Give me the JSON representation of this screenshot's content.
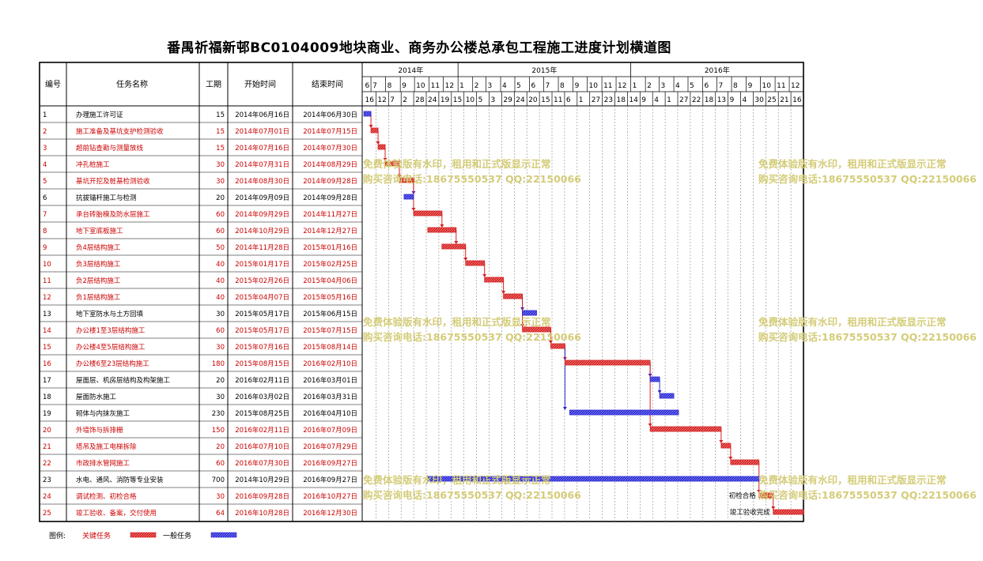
{
  "title": "番禺祈福新邨BC0104009地块商业、商务办公楼总承包工程施工进度计划横道图",
  "header": {
    "id": "编号",
    "name": "任务名称",
    "duration": "工期",
    "start": "开始时间",
    "end": "结束时间"
  },
  "colors": {
    "critical": "#d42020",
    "normal": "#2a2ad4",
    "critical_text": "#cc0000",
    "normal_text": "#000000",
    "border": "#000000",
    "grid": "#8a8a8a",
    "watermark": "#d4cc78"
  },
  "timeline": {
    "years": [
      "2014年",
      "2015年",
      "2016年"
    ],
    "months": [
      "6",
      "7",
      "8",
      "9",
      "10",
      "11",
      "12",
      "1",
      "2",
      "3",
      "4",
      "5",
      "6",
      "7",
      "8",
      "9",
      "10",
      "11",
      "12",
      "1",
      "2",
      "3",
      "4",
      "5",
      "6",
      "7",
      "8",
      "9",
      "10",
      "11",
      "12"
    ],
    "weeks": [
      "16",
      "12",
      "7",
      "2",
      "28",
      "24",
      "19",
      "15",
      "10",
      "5",
      "3",
      "29",
      "24",
      "20",
      "15",
      "11",
      "6",
      "1",
      "27",
      "23",
      "18",
      "14",
      "9",
      "4",
      "1",
      "27",
      "22",
      "18",
      "13",
      "9",
      "4",
      "30",
      "25",
      "21",
      "16"
    ]
  },
  "chart_data": {
    "type": "gantt",
    "title": "番禺祈福新邨BC0104009地块商业、商务办公楼总承包工程施工进度计划横道图",
    "x_range": [
      "2014-06-16",
      "2016-12-30"
    ],
    "tasks": [
      {
        "id": "1",
        "name": "办理施工许可证",
        "duration": "15",
        "start": "2014年06月16日",
        "end": "2014年06月30日",
        "critical": false
      },
      {
        "id": "2",
        "name": "施工准备及基坑支护检测验收",
        "duration": "15",
        "start": "2014年07月01日",
        "end": "2014年07月15日",
        "critical": true
      },
      {
        "id": "3",
        "name": "超前钻查勘与测量放线",
        "duration": "15",
        "start": "2014年07月16日",
        "end": "2014年07月30日",
        "critical": true
      },
      {
        "id": "4",
        "name": "冲孔桩施工",
        "duration": "30",
        "start": "2014年07月31日",
        "end": "2014年08月29日",
        "critical": true
      },
      {
        "id": "5",
        "name": "基坑开挖及桩基检测验收",
        "duration": "30",
        "start": "2014年08月30日",
        "end": "2014年09月28日",
        "critical": true
      },
      {
        "id": "6",
        "name": "抗拔锚杆施工与检测",
        "duration": "20",
        "start": "2014年09月09日",
        "end": "2014年09月28日",
        "critical": false
      },
      {
        "id": "7",
        "name": "承台砖胎模及防水层施工",
        "duration": "60",
        "start": "2014年09月29日",
        "end": "2014年11月27日",
        "critical": true
      },
      {
        "id": "8",
        "name": "地下室底板施工",
        "duration": "60",
        "start": "2014年10月29日",
        "end": "2014年12月27日",
        "critical": true
      },
      {
        "id": "9",
        "name": "负4层结构施工",
        "duration": "50",
        "start": "2014年11月28日",
        "end": "2015年01月16日",
        "critical": true
      },
      {
        "id": "10",
        "name": "负3层结构施工",
        "duration": "40",
        "start": "2015年01月17日",
        "end": "2015年02月25日",
        "critical": true
      },
      {
        "id": "11",
        "name": "负2层结构施工",
        "duration": "40",
        "start": "2015年02月26日",
        "end": "2015年04月06日",
        "critical": true
      },
      {
        "id": "12",
        "name": "负1层结构施工",
        "duration": "40",
        "start": "2015年04月07日",
        "end": "2015年05月16日",
        "critical": true
      },
      {
        "id": "13",
        "name": "地下室防水与土方回填",
        "duration": "30",
        "start": "2015年05月17日",
        "end": "2015年06月15日",
        "critical": false
      },
      {
        "id": "14",
        "name": "办公楼1至3层结构施工",
        "duration": "60",
        "start": "2015年05月17日",
        "end": "2015年07月15日",
        "critical": true
      },
      {
        "id": "15",
        "name": "办公楼4至5层结构施工",
        "duration": "30",
        "start": "2015年07月16日",
        "end": "2015年08月14日",
        "critical": true
      },
      {
        "id": "16",
        "name": "办公楼6至23层结构施工",
        "duration": "180",
        "start": "2015年08月15日",
        "end": "2016年02月10日",
        "critical": true
      },
      {
        "id": "17",
        "name": "屋面层、机房层结构及构架施工",
        "duration": "20",
        "start": "2016年02月11日",
        "end": "2016年03月01日",
        "critical": false
      },
      {
        "id": "18",
        "name": "屋面防水施工",
        "duration": "30",
        "start": "2016年03月02日",
        "end": "2016年03月31日",
        "critical": false
      },
      {
        "id": "19",
        "name": "砌体与内抹灰施工",
        "duration": "230",
        "start": "2015年08月25日",
        "end": "2016年04月10日",
        "critical": false
      },
      {
        "id": "20",
        "name": "外墙饰与拆排栅",
        "duration": "150",
        "start": "2016年02月11日",
        "end": "2016年07月09日",
        "critical": true
      },
      {
        "id": "21",
        "name": "塔吊及施工电梯拆除",
        "duration": "20",
        "start": "2016年07月10日",
        "end": "2016年07月29日",
        "critical": true
      },
      {
        "id": "22",
        "name": "市政排水管网施工",
        "duration": "60",
        "start": "2016年07月30日",
        "end": "2016年09月27日",
        "critical": true
      },
      {
        "id": "23",
        "name": "水电、通风、消防等专业安装",
        "duration": "700",
        "start": "2014年10月29日",
        "end": "2016年09月27日",
        "critical": false
      },
      {
        "id": "24",
        "name": "调试检测、初检合格",
        "duration": "30",
        "start": "2016年09月28日",
        "end": "2016年10月27日",
        "critical": true
      },
      {
        "id": "25",
        "name": "竣工验收、备案，交付使用",
        "duration": "64",
        "start": "2016年10月28日",
        "end": "2016年12月30日",
        "critical": true
      }
    ],
    "annotations": [
      {
        "task": "24",
        "text": "初检合格"
      },
      {
        "task": "25",
        "text": "竣工验收完成"
      }
    ],
    "legend": {
      "label": "图例:",
      "critical": "关键任务",
      "normal": "一般任务"
    }
  },
  "watermark": {
    "line1": "免费体验版有水印，租用和正式版显示正常",
    "line2": "购买咨询电话:18675550537 QQ:22150066"
  }
}
